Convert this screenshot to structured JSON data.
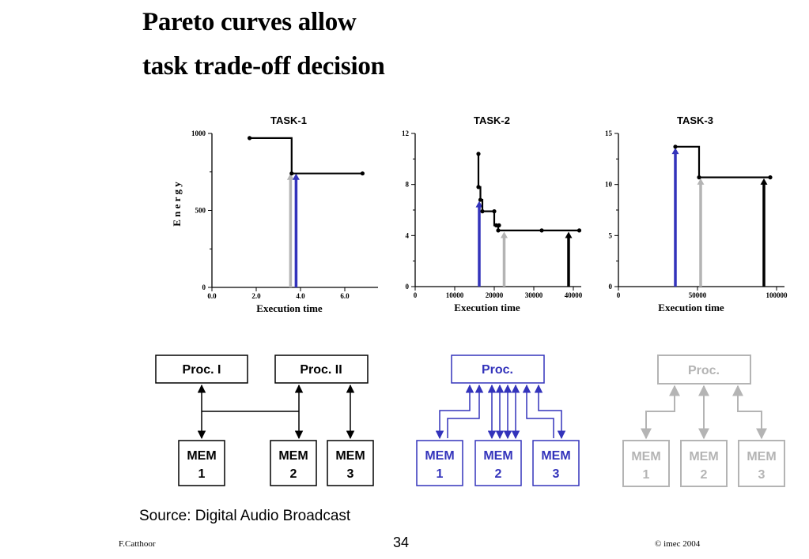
{
  "slide": {
    "title_line1": "Pareto curves allow",
    "title_line2": "task trade-off decision",
    "source": "Source:  Digital Audio Broadcast",
    "page_number": "34",
    "author": "F.Catthoor",
    "copyright": "© imec 2004"
  },
  "colors": {
    "black": "#000000",
    "blue": "#3333bb",
    "gray": "#b4b4b4"
  },
  "chart_data": [
    {
      "type": "line",
      "title": "TASK-1",
      "ylabel": "E n e r g y",
      "xlabel": "Execution time",
      "xlim": [
        0,
        7.5
      ],
      "ylim": [
        0,
        1000
      ],
      "xticks": [
        {
          "v": 0,
          "label": "0.0"
        },
        {
          "v": 2,
          "label": "2.0"
        },
        {
          "v": 4,
          "label": "4.0"
        },
        {
          "v": 6,
          "label": "6.0"
        }
      ],
      "yticks": [
        {
          "v": 0,
          "label": "0"
        },
        {
          "v": 500,
          "label": "500"
        },
        {
          "v": 1000,
          "label": "1000"
        }
      ],
      "curve": [
        [
          1.7,
          970
        ],
        [
          3.6,
          970
        ],
        [
          3.6,
          740
        ],
        [
          6.8,
          740
        ]
      ],
      "points": [
        [
          1.7,
          970
        ],
        [
          3.6,
          740
        ],
        [
          6.8,
          740
        ]
      ],
      "arrows": [
        {
          "x": 3.55,
          "y": 740,
          "color": "gray"
        },
        {
          "x": 3.8,
          "y": 740,
          "color": "blue"
        }
      ]
    },
    {
      "type": "line",
      "title": "TASK-2",
      "xlabel": "Execution time",
      "xlim": [
        0,
        42000
      ],
      "ylim": [
        0,
        12
      ],
      "xticks": [
        {
          "v": 0,
          "label": "0"
        },
        {
          "v": 10000,
          "label": "10000"
        },
        {
          "v": 20000,
          "label": "20000"
        },
        {
          "v": 30000,
          "label": "30000"
        },
        {
          "v": 40000,
          "label": "40000"
        }
      ],
      "yticks": [
        {
          "v": 0,
          "label": "0"
        },
        {
          "v": 4,
          "label": "4"
        },
        {
          "v": 8,
          "label": "8"
        },
        {
          "v": 12,
          "label": "12"
        }
      ],
      "curve": [
        [
          16000,
          10.4
        ],
        [
          16000,
          7.8
        ],
        [
          16500,
          7.8
        ],
        [
          16500,
          6.8
        ],
        [
          17000,
          6.8
        ],
        [
          17000,
          5.9
        ],
        [
          20000,
          5.9
        ],
        [
          20000,
          4.8
        ],
        [
          21000,
          4.8
        ],
        [
          21000,
          4.4
        ],
        [
          32000,
          4.4
        ],
        [
          41500,
          4.4
        ]
      ],
      "points": [
        [
          16000,
          10.4
        ],
        [
          16000,
          7.8
        ],
        [
          16500,
          6.8
        ],
        [
          17000,
          5.9
        ],
        [
          20000,
          5.9
        ],
        [
          20500,
          4.8
        ],
        [
          21200,
          4.8
        ],
        [
          21000,
          4.4
        ],
        [
          32000,
          4.4
        ],
        [
          41500,
          4.4
        ]
      ],
      "arrows": [
        {
          "x": 16200,
          "y": 6.7,
          "color": "blue"
        },
        {
          "x": 22500,
          "y": 4.3,
          "color": "gray"
        },
        {
          "x": 38800,
          "y": 4.3,
          "color": "black"
        }
      ]
    },
    {
      "type": "line",
      "title": "TASK-3",
      "xlabel": "Execution time",
      "xlim": [
        0,
        105000
      ],
      "ylim": [
        0,
        15
      ],
      "xticks": [
        {
          "v": 0,
          "label": "0"
        },
        {
          "v": 50000,
          "label": "50000"
        },
        {
          "v": 100000,
          "label": "100000"
        }
      ],
      "yticks": [
        {
          "v": 0,
          "label": "0"
        },
        {
          "v": 5,
          "label": "5"
        },
        {
          "v": 10,
          "label": "10"
        },
        {
          "v": 15,
          "label": "15"
        }
      ],
      "curve": [
        [
          36000,
          13.7
        ],
        [
          51000,
          13.7
        ],
        [
          51000,
          10.7
        ],
        [
          96000,
          10.7
        ]
      ],
      "points": [
        [
          36000,
          13.7
        ],
        [
          51000,
          10.7
        ],
        [
          96000,
          10.7
        ]
      ],
      "arrows": [
        {
          "x": 36000,
          "y": 13.6,
          "color": "blue"
        },
        {
          "x": 52000,
          "y": 10.6,
          "color": "gray"
        },
        {
          "x": 92000,
          "y": 10.6,
          "color": "black"
        }
      ]
    }
  ],
  "architectures": {
    "a": {
      "proc1": "Proc. I",
      "proc2": "Proc. II",
      "mem1_line1": "MEM",
      "mem1_line2": "1",
      "mem2_line1": "MEM",
      "mem2_line2": "2",
      "mem3_line1": "MEM",
      "mem3_line2": "3"
    },
    "b": {
      "proc": "Proc.",
      "mem1_line1": "MEM",
      "mem1_line2": "1",
      "mem2_line1": "MEM",
      "mem2_line2": "2",
      "mem3_line1": "MEM",
      "mem3_line2": "3"
    },
    "c": {
      "proc": "Proc.",
      "mem1_line1": "MEM",
      "mem1_line2": "1",
      "mem2_line1": "MEM",
      "mem2_line2": "2",
      "mem3_line1": "MEM",
      "mem3_line2": "3"
    }
  }
}
